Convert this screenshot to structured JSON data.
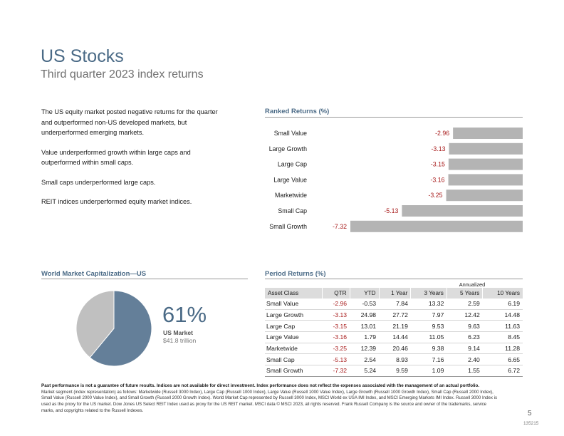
{
  "header": {
    "title": "US Stocks",
    "subtitle": "Third quarter 2023 index returns"
  },
  "summary": {
    "paragraphs": [
      "The US equity market posted negative returns for the quarter and outperformed non-US developed markets, but underperformed emerging markets.",
      "Value underperformed growth within large caps and outperformed within small caps.",
      "Small caps underperformed large caps.",
      "REIT indices underperformed equity market indices."
    ]
  },
  "colors": {
    "accent": "#4a6a86",
    "bar": "#b4b4b4",
    "negative": "#a81c1c",
    "pie_us": "#647f99",
    "pie_rest": "#c0c0c0"
  },
  "ranked_returns": {
    "title": "Ranked Returns (%)"
  },
  "chart_data": [
    {
      "type": "bar",
      "orientation": "horizontal",
      "title": "Ranked Returns (%)",
      "categories": [
        "Small Value",
        "Large Growth",
        "Large Cap",
        "Large Value",
        "Marketwide",
        "Small Cap",
        "Small Growth"
      ],
      "values": [
        -2.96,
        -3.13,
        -3.15,
        -3.16,
        -3.25,
        -5.13,
        -7.32
      ],
      "data_labels": [
        "-2.96",
        "-3.13",
        "-3.15",
        "-3.16",
        "-3.25",
        "-5.13",
        "-7.32"
      ],
      "xlim": [
        -7.32,
        0
      ],
      "grid": false
    },
    {
      "type": "pie",
      "title": "World Market Capitalization—US",
      "slices": [
        {
          "label": "US Market",
          "value": 61
        },
        {
          "label": "",
          "value": 39
        }
      ]
    },
    {
      "type": "table",
      "title": "Period Returns (%)",
      "group_header": "Annualized",
      "columns": [
        "Asset Class",
        "QTR",
        "YTD",
        "1 Year",
        "3 Years",
        "5 Years",
        "10 Years"
      ],
      "rows": [
        [
          "Small Value",
          "-2.96",
          "-0.53",
          "7.84",
          "13.32",
          "2.59",
          "6.19"
        ],
        [
          "Large Growth",
          "-3.13",
          "24.98",
          "27.72",
          "7.97",
          "12.42",
          "14.48"
        ],
        [
          "Large Cap",
          "-3.15",
          "13.01",
          "21.19",
          "9.53",
          "9.63",
          "11.63"
        ],
        [
          "Large Value",
          "-3.16",
          "1.79",
          "14.44",
          "11.05",
          "6.23",
          "8.45"
        ],
        [
          "Marketwide",
          "-3.25",
          "12.39",
          "20.46",
          "9.38",
          "9.14",
          "11.28"
        ],
        [
          "Small Cap",
          "-5.13",
          "2.54",
          "8.93",
          "7.16",
          "2.40",
          "6.65"
        ],
        [
          "Small Growth",
          "-7.32",
          "5.24",
          "9.59",
          "1.09",
          "1.55",
          "6.72"
        ]
      ]
    }
  ],
  "world_cap": {
    "title": "World Market Capitalization—US",
    "percent": "61%",
    "label": "US Market",
    "value": "$41.8 trillion"
  },
  "period_returns": {
    "title": "Period Returns (%)",
    "group_header": "Annualized"
  },
  "footer": {
    "disclaimer_bold": "Past performance is not a guarantee of future results. Indices are not available for direct investment. Index performance does not reflect the expenses associated with the management of an actual portfolio.",
    "disclaimer": "Market segment (index representation) as follows: Marketwide (Russell 3000 Index), Large Cap (Russell 1000 Index), Large Value (Russell 1000 Value Index), Large Growth (Russell 1000 Growth Index), Small Cap (Russell 2000 Index), Small Value (Russell 2000 Value Index), and Small Growth (Russell 2000 Growth Index). World Market Cap represented by Russell 3000 Index, MSCI World ex USA IMI Index, and MSCI Emerging Markets IMI Index. Russell 3000 Index is used as the proxy for the US market. Dow Jones US Select REIT Index used as proxy for the US REIT market. MSCI data © MSCI 2023, all rights reserved. Frank Russell Company is the source and owner of the trademarks, service marks, and copyrights related to the Russell Indexes.",
    "page_number": "5",
    "code": "135215"
  }
}
